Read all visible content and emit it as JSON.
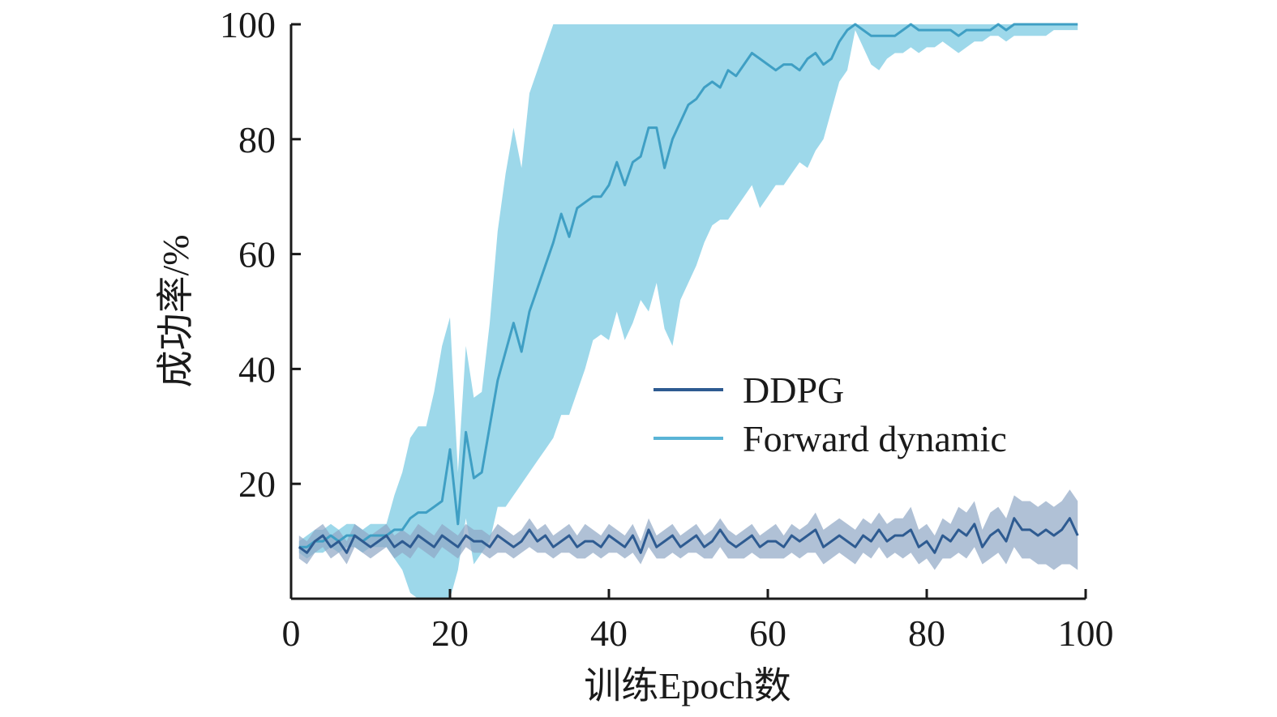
{
  "chart_data": {
    "type": "line",
    "title": "",
    "xlabel": "训练Epoch数",
    "ylabel": "成功率/%",
    "xlim": [
      0,
      100
    ],
    "ylim": [
      0,
      100
    ],
    "xticks": [
      0,
      20,
      40,
      60,
      80,
      100
    ],
    "yticks": [
      20,
      40,
      60,
      80,
      100
    ],
    "xtick_labels": [
      "0",
      "20",
      "40",
      "60",
      "80",
      "100"
    ],
    "ytick_labels": [
      "20",
      "40",
      "60",
      "80",
      "100"
    ],
    "grid": false,
    "legend_position": "center-right",
    "x": [
      1,
      2,
      3,
      4,
      5,
      6,
      7,
      8,
      9,
      10,
      11,
      12,
      13,
      14,
      15,
      16,
      17,
      18,
      19,
      20,
      21,
      22,
      23,
      24,
      25,
      26,
      27,
      28,
      29,
      30,
      31,
      32,
      33,
      34,
      35,
      36,
      37,
      38,
      39,
      40,
      41,
      42,
      43,
      44,
      45,
      46,
      47,
      48,
      49,
      50,
      51,
      52,
      53,
      54,
      55,
      56,
      57,
      58,
      59,
      60,
      61,
      62,
      63,
      64,
      65,
      66,
      67,
      68,
      69,
      70,
      71,
      72,
      73,
      74,
      75,
      76,
      77,
      78,
      79,
      80,
      81,
      82,
      83,
      84,
      85,
      86,
      87,
      88,
      89,
      90,
      91,
      92,
      93,
      94,
      95,
      96,
      97,
      98,
      99
    ],
    "series": [
      {
        "name": "DDPG",
        "color": "#2e5b91",
        "band_color": "#8ea7c4",
        "values": [
          9,
          8,
          10,
          11,
          9,
          10,
          8,
          11,
          10,
          9,
          10,
          11,
          9,
          10,
          9,
          11,
          10,
          9,
          11,
          10,
          9,
          11,
          10,
          10,
          9,
          11,
          10,
          9,
          10,
          12,
          10,
          11,
          9,
          10,
          11,
          9,
          10,
          10,
          9,
          11,
          10,
          9,
          11,
          8,
          12,
          9,
          10,
          11,
          9,
          10,
          11,
          9,
          10,
          12,
          10,
          9,
          10,
          11,
          9,
          10,
          10,
          9,
          11,
          10,
          11,
          12,
          9,
          10,
          11,
          10,
          9,
          11,
          10,
          12,
          10,
          11,
          11,
          12,
          9,
          10,
          8,
          11,
          10,
          12,
          11,
          13,
          9,
          11,
          12,
          10,
          14,
          12,
          12,
          11,
          12,
          11,
          12,
          14,
          11
        ],
        "lower": [
          7,
          6,
          8,
          9,
          7,
          8,
          6,
          9,
          8,
          7,
          8,
          9,
          7,
          8,
          7,
          9,
          8,
          7,
          9,
          8,
          7,
          9,
          8,
          8,
          7,
          8,
          8,
          7,
          8,
          9,
          8,
          8,
          7,
          8,
          8,
          7,
          7,
          8,
          7,
          8,
          8,
          7,
          8,
          6,
          9,
          7,
          7,
          8,
          7,
          8,
          8,
          7,
          7,
          9,
          7,
          7,
          7,
          8,
          7,
          7,
          7,
          7,
          8,
          7,
          8,
          8,
          6,
          7,
          8,
          7,
          6,
          8,
          7,
          9,
          7,
          8,
          7,
          8,
          6,
          7,
          5,
          7,
          7,
          8,
          7,
          9,
          6,
          7,
          8,
          6,
          9,
          7,
          7,
          6,
          6,
          5,
          6,
          6,
          5
        ],
        "upper": [
          11,
          10,
          12,
          13,
          11,
          12,
          10,
          13,
          12,
          11,
          12,
          13,
          11,
          12,
          11,
          13,
          12,
          11,
          13,
          12,
          11,
          13,
          12,
          12,
          11,
          13,
          12,
          11,
          12,
          14,
          12,
          13,
          11,
          12,
          13,
          11,
          13,
          12,
          11,
          13,
          12,
          11,
          13,
          10,
          14,
          11,
          12,
          13,
          11,
          12,
          13,
          11,
          12,
          14,
          12,
          11,
          12,
          13,
          11,
          12,
          13,
          11,
          13,
          12,
          13,
          15,
          12,
          13,
          14,
          13,
          12,
          14,
          13,
          15,
          13,
          14,
          14,
          16,
          12,
          13,
          11,
          14,
          13,
          16,
          15,
          17,
          12,
          15,
          16,
          14,
          18,
          17,
          17,
          16,
          17,
          16,
          17,
          19,
          17
        ]
      },
      {
        "name": "Forward dynamic",
        "color": "#3f9fc4",
        "band_color": "#7ccbe3",
        "values": [
          9,
          9,
          10,
          10,
          11,
          10,
          11,
          11,
          10,
          11,
          11,
          11,
          12,
          12,
          14,
          15,
          15,
          16,
          17,
          26,
          13,
          29,
          21,
          22,
          30,
          38,
          43,
          48,
          43,
          50,
          54,
          58,
          62,
          67,
          63,
          68,
          69,
          70,
          70,
          72,
          76,
          72,
          76,
          77,
          82,
          82,
          75,
          80,
          83,
          86,
          87,
          89,
          90,
          89,
          92,
          91,
          93,
          95,
          94,
          93,
          92,
          93,
          93,
          92,
          94,
          95,
          93,
          94,
          97,
          99,
          100,
          99,
          98,
          98,
          98,
          98,
          99,
          100,
          99,
          99,
          99,
          99,
          99,
          98,
          99,
          99,
          99,
          99,
          100,
          99,
          100,
          100,
          100,
          100,
          100,
          100,
          100,
          100,
          100
        ],
        "lower": [
          8,
          7,
          8,
          8,
          9,
          8,
          9,
          9,
          8,
          9,
          9,
          9,
          7,
          5,
          1,
          0,
          0,
          0,
          0,
          0,
          5,
          14,
          6,
          8,
          10,
          16,
          16,
          18,
          20,
          22,
          24,
          26,
          28,
          32,
          32,
          36,
          40,
          45,
          46,
          45,
          50,
          45,
          48,
          52,
          50,
          55,
          47,
          44,
          52,
          55,
          58,
          62,
          65,
          66,
          66,
          68,
          70,
          72,
          68,
          70,
          72,
          72,
          74,
          76,
          75,
          78,
          80,
          85,
          90,
          92,
          99,
          96,
          93,
          92,
          94,
          95,
          95,
          96,
          95,
          96,
          96,
          97,
          96,
          95,
          96,
          97,
          97,
          98,
          98,
          97,
          98,
          98,
          98,
          98,
          98,
          99,
          99,
          99,
          99
        ],
        "upper": [
          10,
          11,
          12,
          12,
          13,
          12,
          13,
          13,
          12,
          13,
          13,
          13,
          18,
          22,
          28,
          30,
          30,
          36,
          44,
          49,
          22,
          44,
          35,
          36,
          48,
          64,
          74,
          82,
          75,
          88,
          92,
          96,
          100,
          100,
          100,
          100,
          100,
          100,
          100,
          100,
          100,
          100,
          100,
          100,
          100,
          100,
          100,
          100,
          100,
          100,
          100,
          100,
          100,
          100,
          100,
          100,
          100,
          100,
          100,
          100,
          100,
          100,
          100,
          100,
          100,
          100,
          100,
          100,
          100,
          100,
          100,
          100,
          100,
          100,
          100,
          100,
          100,
          100,
          100,
          100,
          100,
          100,
          100,
          100,
          100,
          100,
          100,
          100,
          100,
          100,
          100,
          100,
          100,
          100,
          100,
          100,
          100,
          100,
          100
        ]
      }
    ]
  }
}
